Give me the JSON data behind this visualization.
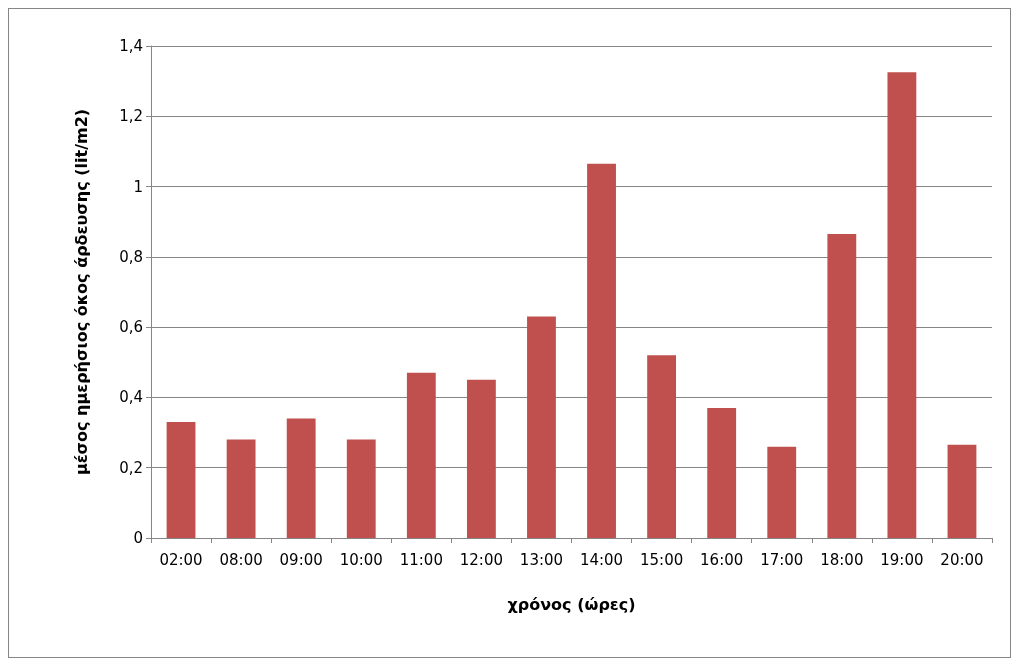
{
  "chart_data": {
    "type": "bar",
    "xlabel": "χρόνος (ώρες)",
    "ylabel": "μέσος ημερήσιος όκος άρδευσης (lit/m2)",
    "categories": [
      "02:00",
      "08:00",
      "09:00",
      "10:00",
      "11:00",
      "12:00",
      "13:00",
      "14:00",
      "15:00",
      "16:00",
      "17:00",
      "18:00",
      "19:00",
      "20:00"
    ],
    "values": [
      0.33,
      0.28,
      0.34,
      0.28,
      0.47,
      0.45,
      0.63,
      1.065,
      0.52,
      0.37,
      0.26,
      0.865,
      1.325,
      0.265
    ],
    "color": "#c0504d",
    "ylim": [
      0,
      1.4
    ],
    "yticks": [
      0,
      {
        "value": 0.2,
        "label": "0,2"
      },
      {
        "value": 0.4,
        "label": "0,4"
      },
      {
        "value": 0.6,
        "label": "0,6"
      },
      {
        "value": 0.8,
        "label": "0,8"
      },
      1,
      {
        "value": 1.2,
        "label": "1,2"
      },
      {
        "value": 1.4,
        "label": "1,4"
      }
    ],
    "grid": "y"
  }
}
